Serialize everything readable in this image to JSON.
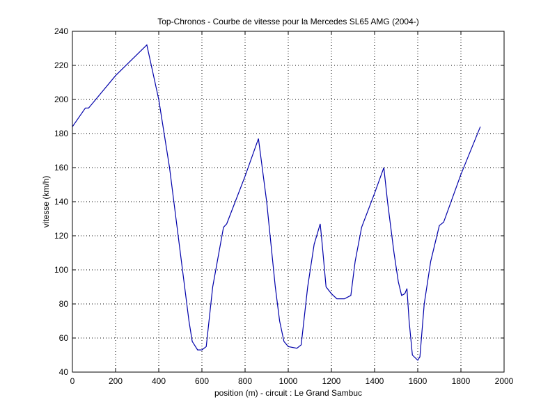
{
  "chart_data": {
    "type": "line",
    "title": "Top-Chronos - Courbe de vitesse pour la Mercedes SL65 AMG (2004-)",
    "xlabel": "position (m) - circuit : Le Grand Sambuc",
    "ylabel": "vitesse (km/h)",
    "xlim": [
      0,
      2000
    ],
    "ylim": [
      40,
      240
    ],
    "xticks": [
      0,
      200,
      400,
      600,
      800,
      1000,
      1200,
      1400,
      1600,
      1800,
      2000
    ],
    "yticks": [
      40,
      60,
      80,
      100,
      120,
      140,
      160,
      180,
      200,
      220,
      240
    ],
    "grid": true,
    "line_color": "#0000aa",
    "series": [
      {
        "x": [
          0,
          60,
          75,
          200,
          345,
          400,
          450,
          500,
          540,
          555,
          580,
          600,
          620,
          650,
          700,
          715,
          800,
          862,
          900,
          940,
          960,
          980,
          1000,
          1040,
          1060,
          1090,
          1120,
          1148,
          1155,
          1175,
          1200,
          1225,
          1260,
          1290,
          1310,
          1340,
          1400,
          1443,
          1460,
          1490,
          1510,
          1525,
          1540,
          1550,
          1560,
          1575,
          1600,
          1610,
          1630,
          1660,
          1700,
          1720,
          1800,
          1890
        ],
        "y": [
          184,
          195,
          195,
          214,
          232,
          200,
          160,
          110,
          70,
          58,
          53,
          53,
          55,
          90,
          125,
          127,
          155,
          177,
          140,
          90,
          70,
          58,
          55,
          54,
          56,
          90,
          115,
          127,
          118,
          90,
          86,
          83,
          83,
          85,
          105,
          125,
          145,
          160,
          140,
          110,
          93,
          85,
          86,
          89,
          70,
          50,
          47,
          49,
          80,
          105,
          126,
          128,
          156,
          184
        ]
      }
    ]
  }
}
